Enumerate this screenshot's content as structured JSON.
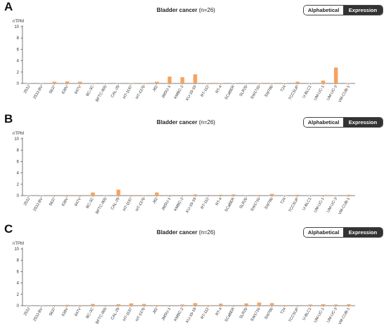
{
  "toggle": {
    "alphabetical_label": "Alphabetical",
    "expression_label": "Expression"
  },
  "panels": [
    {
      "letter": "A",
      "title": "Bladder cancer",
      "subtitle": "(n=26)"
    },
    {
      "letter": "B",
      "title": "Bladder cancer",
      "subtitle": "(n=26)"
    },
    {
      "letter": "C",
      "title": "Bladder cancer",
      "subtitle": "(n=26)"
    }
  ],
  "chart_data": [
    {
      "type": "bar",
      "title": "Bladder cancer (n=26)",
      "ylabel": "nTPM",
      "ylim": [
        0,
        10
      ],
      "yticks": [
        0,
        2,
        4,
        6,
        8,
        10
      ],
      "bar_color": "#f4a460",
      "categories": [
        "253J",
        "253J-BV",
        "5637",
        "639V",
        "647V",
        "BC-3C",
        "BFTC-905",
        "CAL-29",
        "HT-1197",
        "HT-1376",
        "J82",
        "JMSU-1",
        "KMBC-2",
        "KU-19-19",
        "RT-112",
        "RT-4",
        "SCaBER",
        "SLR20",
        "SW1710",
        "SW780",
        "T24",
        "TCCSUP",
        "U-BLC1",
        "UM-UC-1",
        "UM-UC-3",
        "VM-CUB-1"
      ],
      "values": [
        0.05,
        0.05,
        0.3,
        0.35,
        0.3,
        0.05,
        0.05,
        0.05,
        0.05,
        0.05,
        0.3,
        1.2,
        1.1,
        1.6,
        0.05,
        0.05,
        0.05,
        0.05,
        0.05,
        0.05,
        0.05,
        0.3,
        0.05,
        0.5,
        2.8,
        0.05
      ]
    },
    {
      "type": "bar",
      "title": "Bladder cancer (n=26)",
      "ylabel": "nTPM",
      "ylim": [
        0,
        10
      ],
      "yticks": [
        0,
        2,
        4,
        6,
        8,
        10
      ],
      "bar_color": "#f4a460",
      "categories": [
        "253J",
        "253J-BV",
        "5637",
        "639V",
        "647V",
        "BC-3C",
        "BFTC-905",
        "CAL-29",
        "HT-1197",
        "HT-1376",
        "J82",
        "JMSU-1",
        "KMBC-2",
        "KU-19-19",
        "RT-112",
        "RT-4",
        "SCaBER",
        "SLR20",
        "SW1710",
        "SW780",
        "T24",
        "TCCSUP",
        "U-BLC1",
        "UM-UC-1",
        "UM-UC-3",
        "VM-CUB-1"
      ],
      "values": [
        0.05,
        0.05,
        0.1,
        0.1,
        0.1,
        0.55,
        0.05,
        1.05,
        0.1,
        0.05,
        0.55,
        0.1,
        0.1,
        0.2,
        0.1,
        0.15,
        0.2,
        0.05,
        0.1,
        0.3,
        0.05,
        0.15,
        0.05,
        0.1,
        0.05,
        0.15
      ]
    },
    {
      "type": "bar",
      "title": "Bladder cancer (n=26)",
      "ylabel": "nTPM",
      "ylim": [
        0,
        10
      ],
      "yticks": [
        0,
        2,
        4,
        6,
        8,
        10
      ],
      "bar_color": "#f4a460",
      "categories": [
        "253J",
        "253J-BV",
        "5637",
        "639V",
        "647V",
        "BC-3C",
        "BFTC-905",
        "CAL-29",
        "HT-1197",
        "HT-1376",
        "J82",
        "JMSU-1",
        "KMBC-2",
        "KU-19-19",
        "RT-112",
        "RT-4",
        "SCaBER",
        "SLR20",
        "SW1710",
        "SW780",
        "T24",
        "TCCSUP",
        "U-BLC1",
        "UM-UC-1",
        "UM-UC-3",
        "VM-CUB-1"
      ],
      "values": [
        0.05,
        0.05,
        0.1,
        0.15,
        0.1,
        0.3,
        0.1,
        0.25,
        0.4,
        0.3,
        0.1,
        0.1,
        0.2,
        0.45,
        0.1,
        0.35,
        0.1,
        0.4,
        0.55,
        0.45,
        0.1,
        0.1,
        0.2,
        0.25,
        0.2,
        0.25
      ]
    }
  ]
}
